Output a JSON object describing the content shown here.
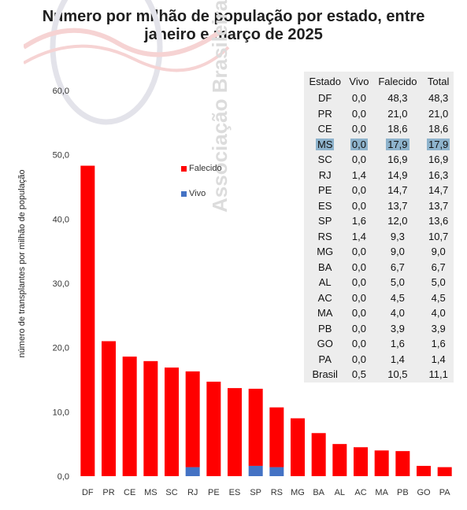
{
  "title": {
    "line1": "Número por milhão de população por estado, entre",
    "line2": "janeiro e março de 2025"
  },
  "watermark_text": "Associação Brasileira",
  "colors": {
    "falecido": "#ff0000",
    "vivo": "#4472c4",
    "highlight": "#8eb3cc",
    "watermark": "#d9d9d9"
  },
  "chart_data": {
    "type": "bar",
    "stacked": true,
    "categories": [
      "DF",
      "PR",
      "CE",
      "MS",
      "SC",
      "RJ",
      "PE",
      "ES",
      "SP",
      "RS",
      "MG",
      "BA",
      "AL",
      "AC",
      "MA",
      "PB",
      "GO",
      "PA"
    ],
    "series": [
      {
        "name": "Vivo",
        "values": [
          0.0,
          0.0,
          0.0,
          0.0,
          0.0,
          1.4,
          0.0,
          0.0,
          1.6,
          1.4,
          0.0,
          0.0,
          0.0,
          0.0,
          0.0,
          0.0,
          0.0,
          0.0
        ]
      },
      {
        "name": "Falecido",
        "values": [
          48.3,
          21.0,
          18.6,
          17.9,
          16.9,
          14.9,
          14.7,
          13.7,
          12.0,
          9.3,
          9.0,
          6.7,
          5.0,
          4.5,
          4.0,
          3.9,
          1.6,
          1.4
        ]
      }
    ],
    "ylabel": "número de transplantes por milhão de população",
    "xlabel": "",
    "ylim": [
      0,
      60
    ],
    "yticks": [
      "0,0",
      "10,0",
      "20,0",
      "30,0",
      "40,0",
      "50,0",
      "60,0"
    ],
    "legend_position": "inside-top",
    "grid": false
  },
  "table": {
    "headers": [
      "Estado",
      "Vivo",
      "Falecido",
      "Total"
    ],
    "rows": [
      [
        "DF",
        "0,0",
        "48,3",
        "48,3"
      ],
      [
        "PR",
        "0,0",
        "21,0",
        "21,0"
      ],
      [
        "CE",
        "0,0",
        "18,6",
        "18,6"
      ],
      [
        "MS",
        "0,0",
        "17,9",
        "17,9"
      ],
      [
        "SC",
        "0,0",
        "16,9",
        "16,9"
      ],
      [
        "RJ",
        "1,4",
        "14,9",
        "16,3"
      ],
      [
        "PE",
        "0,0",
        "14,7",
        "14,7"
      ],
      [
        "ES",
        "0,0",
        "13,7",
        "13,7"
      ],
      [
        "SP",
        "1,6",
        "12,0",
        "13,6"
      ],
      [
        "RS",
        "1,4",
        "9,3",
        "10,7"
      ],
      [
        "MG",
        "0,0",
        "9,0",
        "9,0"
      ],
      [
        "BA",
        "0,0",
        "6,7",
        "6,7"
      ],
      [
        "AL",
        "0,0",
        "5,0",
        "5,0"
      ],
      [
        "AC",
        "0,0",
        "4,5",
        "4,5"
      ],
      [
        "MA",
        "0,0",
        "4,0",
        "4,0"
      ],
      [
        "PB",
        "0,0",
        "3,9",
        "3,9"
      ],
      [
        "GO",
        "0,0",
        "1,6",
        "1,6"
      ],
      [
        "PA",
        "0,0",
        "1,4",
        "1,4"
      ],
      [
        "Brasil",
        "0,5",
        "10,5",
        "11,1"
      ]
    ],
    "highlighted_row": "MS"
  }
}
